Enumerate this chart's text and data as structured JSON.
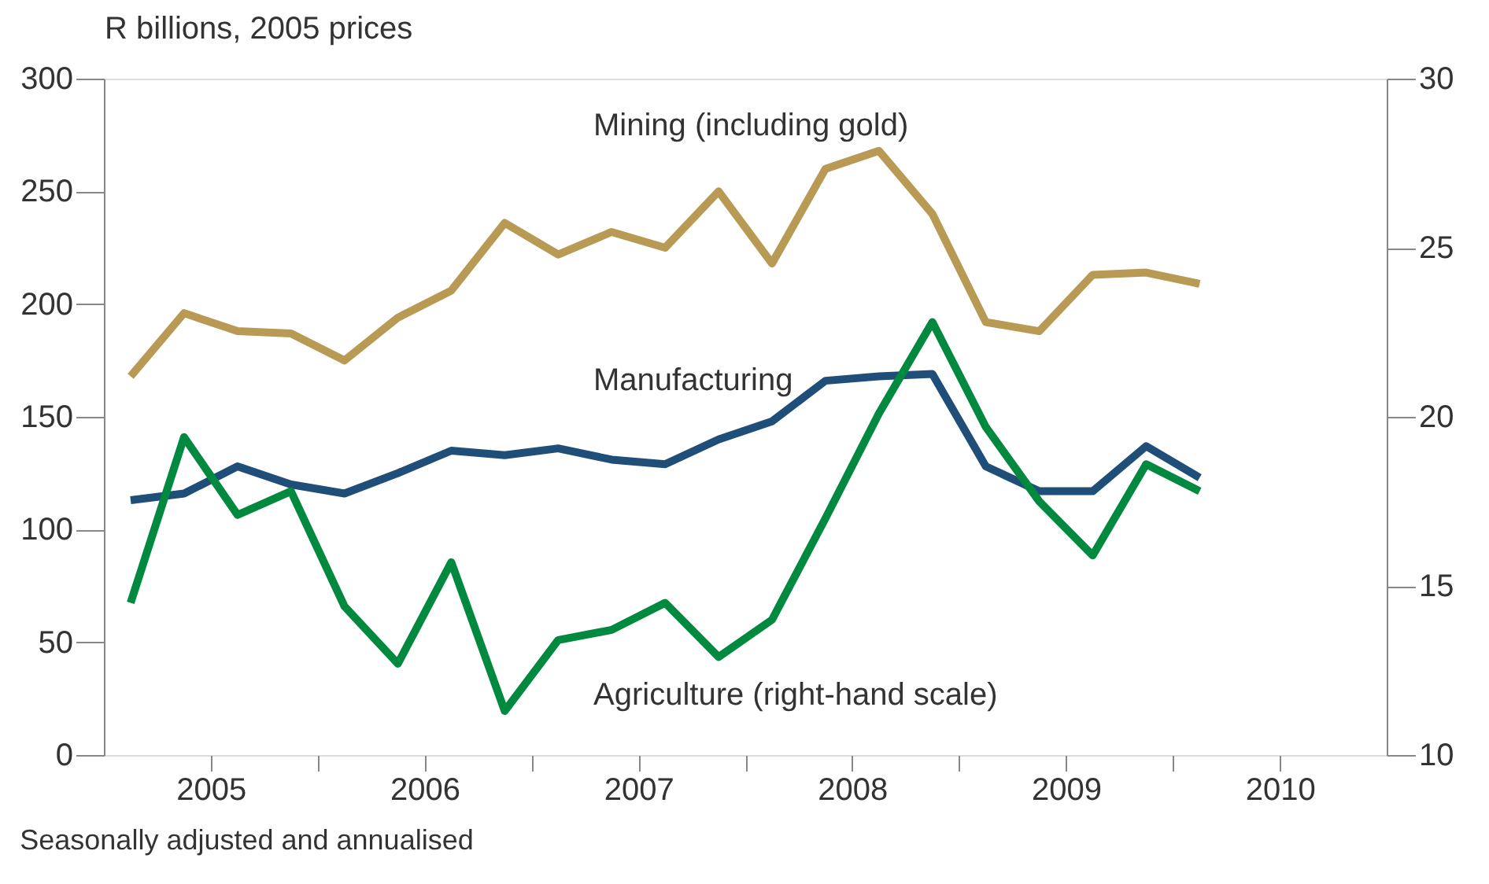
{
  "chart_data": {
    "type": "line",
    "ylabel": "R billions, 2005 prices",
    "annotations": [
      "Seasonally adjusted and annualised"
    ],
    "x": [
      2005.125,
      2005.375,
      2005.625,
      2005.875,
      2006.125,
      2006.375,
      2006.625,
      2006.875,
      2007.125,
      2007.375,
      2007.625,
      2007.875,
      2008.125,
      2008.375,
      2008.625,
      2008.875,
      2009.125,
      2009.375,
      2009.625,
      2009.875,
      2010.125
    ],
    "xlim": [
      2005,
      2011
    ],
    "xticks": [
      {
        "value": 2005.5,
        "label": "2005"
      },
      {
        "value": 2006,
        "label": null
      },
      {
        "value": 2006.5,
        "label": "2006"
      },
      {
        "value": 2007,
        "label": null
      },
      {
        "value": 2007.5,
        "label": "2007"
      },
      {
        "value": 2008,
        "label": null
      },
      {
        "value": 2008.5,
        "label": "2008"
      },
      {
        "value": 2009,
        "label": null
      },
      {
        "value": 2009.5,
        "label": "2009"
      },
      {
        "value": 2010,
        "label": null
      },
      {
        "value": 2010.5,
        "label": "2010"
      }
    ],
    "ylim": [
      0,
      300
    ],
    "yticks": [
      0,
      50,
      100,
      150,
      200,
      250,
      300
    ],
    "y2lim": [
      10,
      30
    ],
    "y2ticks": [
      10,
      15,
      20,
      25,
      30
    ],
    "grid": false,
    "legend": false,
    "series": [
      {
        "name": "Mining (including gold)",
        "color": "#b99a55",
        "values": [
          168,
          196,
          188,
          187,
          175,
          194,
          206,
          236,
          222,
          232,
          225,
          250,
          218,
          260,
          268,
          240,
          192,
          188,
          213,
          214,
          209
        ]
      },
      {
        "name": "Manufacturing",
        "color": "#1f4e79",
        "values": [
          113,
          116,
          128,
          120,
          116,
          125,
          135,
          133,
          136,
          131,
          129,
          140,
          148,
          166,
          168,
          169,
          128,
          117,
          117,
          137,
          123
        ]
      },
      {
        "name": "Agriculture (right-hand scale)",
        "color": "#00893f",
        "axis": "y2",
        "values": [
          14.5,
          19.4,
          17.1,
          17.8,
          14.4,
          12.7,
          15.7,
          11.3,
          13.4,
          13.7,
          14.5,
          12.9,
          14.0,
          17.0,
          20.1,
          22.8,
          19.7,
          17.5,
          15.9,
          18.6,
          17.8
        ]
      }
    ]
  }
}
